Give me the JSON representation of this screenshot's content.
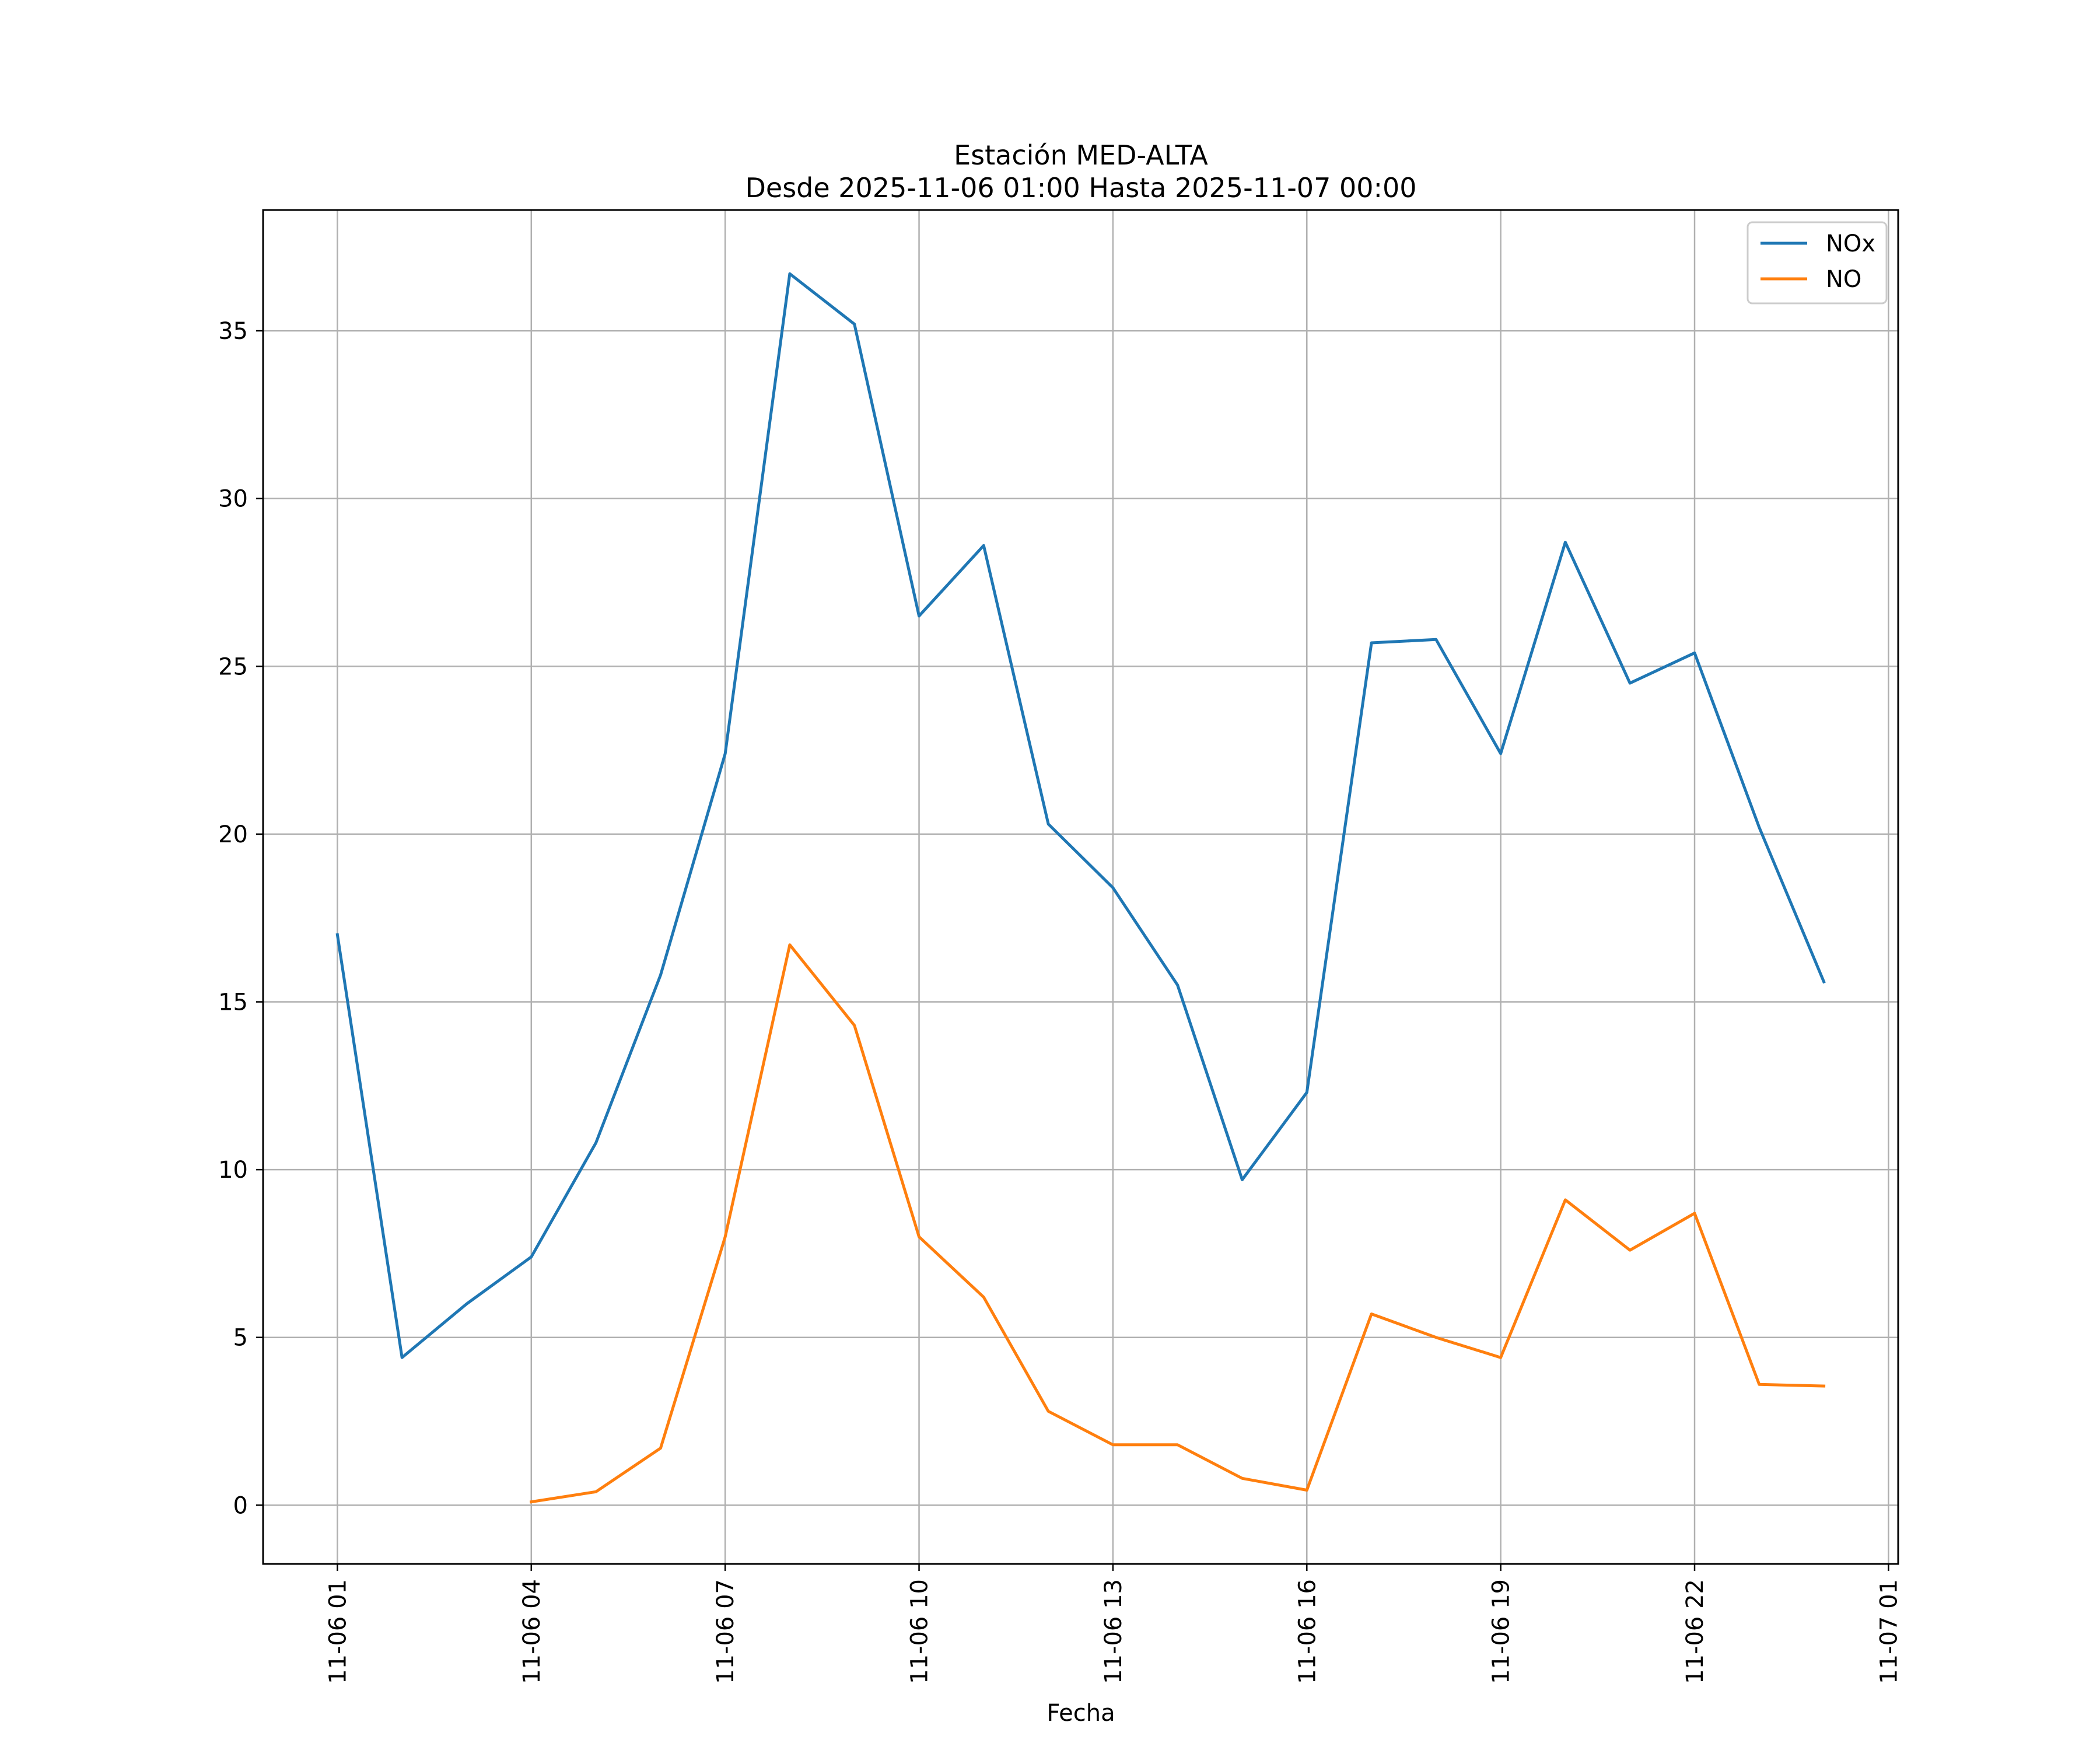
{
  "chart_data": {
    "type": "line",
    "title": "Estación MED-ALTA",
    "subtitle": "Desde 2025-11-06 01:00 Hasta 2025-11-07 00:00",
    "xlabel": "Fecha",
    "ylabel": "",
    "x": [
      "01:00",
      "02:00",
      "03:00",
      "04:00",
      "05:00",
      "06:00",
      "07:00",
      "08:00",
      "09:00",
      "10:00",
      "11:00",
      "12:00",
      "13:00",
      "14:00",
      "15:00",
      "16:00",
      "17:00",
      "18:00",
      "19:00",
      "20:00",
      "21:00",
      "22:00",
      "23:00",
      "00:00"
    ],
    "x_hours": [
      0,
      1,
      2,
      3,
      4,
      5,
      6,
      7,
      8,
      9,
      10,
      11,
      12,
      13,
      14,
      15,
      16,
      17,
      18,
      19,
      20,
      21,
      22,
      23
    ],
    "xlim_hours": [
      -1.15,
      24.15
    ],
    "x_ticks": [
      {
        "hour": 0,
        "label": "11-06 01"
      },
      {
        "hour": 3,
        "label": "11-06 04"
      },
      {
        "hour": 6,
        "label": "11-06 07"
      },
      {
        "hour": 9,
        "label": "11-06 10"
      },
      {
        "hour": 12,
        "label": "11-06 13"
      },
      {
        "hour": 15,
        "label": "11-06 16"
      },
      {
        "hour": 18,
        "label": "11-06 19"
      },
      {
        "hour": 21,
        "label": "11-06 22"
      },
      {
        "hour": 24,
        "label": "11-07 01"
      }
    ],
    "ylim": [
      -1.75,
      38.6
    ],
    "y_ticks": [
      0,
      5,
      10,
      15,
      20,
      25,
      30,
      35
    ],
    "grid": true,
    "legend_position": "top-right",
    "series": [
      {
        "name": "NOx",
        "color": "#1f77b4",
        "values": [
          17.0,
          4.4,
          6.0,
          7.4,
          10.8,
          15.8,
          22.4,
          36.7,
          35.2,
          26.5,
          28.6,
          20.3,
          18.4,
          15.5,
          9.7,
          12.3,
          25.7,
          25.8,
          22.4,
          28.7,
          24.5,
          25.4,
          20.2,
          15.6
        ]
      },
      {
        "name": "NO",
        "color": "#ff7f0e",
        "values": [
          null,
          null,
          null,
          0.1,
          0.4,
          1.7,
          8.0,
          16.7,
          14.3,
          8.0,
          6.2,
          2.8,
          1.8,
          1.8,
          0.8,
          0.45,
          5.7,
          5.0,
          4.4,
          9.1,
          7.6,
          8.7,
          3.6,
          3.55
        ]
      }
    ]
  }
}
